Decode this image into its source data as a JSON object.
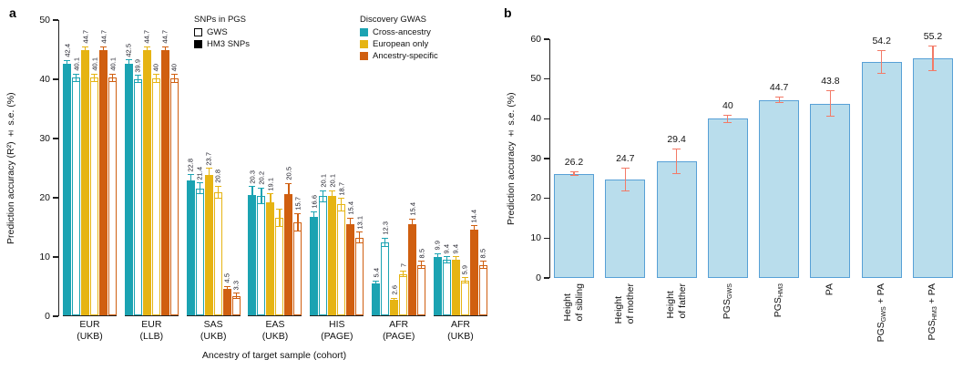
{
  "figure": {
    "panel_a_label": "a",
    "panel_b_label": "b"
  },
  "chart_data": [
    {
      "panel": "a",
      "type": "bar",
      "ylabel": "Prediction accuracy (R²) ± s.e. (%)",
      "xlabel": "Ancestry of target sample (cohort)",
      "ylim": [
        0,
        50
      ],
      "yticks": [
        0,
        10,
        20,
        30,
        40,
        50
      ],
      "grid": false,
      "legend_snps": {
        "title": "SNPs in PGS",
        "items": [
          {
            "label": "GWS",
            "style": "open"
          },
          {
            "label": "HM3 SNPs",
            "style": "solid"
          }
        ]
      },
      "legend_gwas": {
        "title": "Discovery GWAS",
        "items": [
          {
            "label": "Cross-ancestry",
            "key": "cross"
          },
          {
            "label": "European only",
            "key": "euro"
          },
          {
            "label": "Ancestry-specific",
            "key": "spec"
          }
        ]
      },
      "colors": {
        "cross": "#1ba3b2",
        "euro": "#e6b413",
        "spec": "#d05f10"
      },
      "groups": [
        {
          "label": [
            "EUR",
            "(UKB)"
          ],
          "bars": [
            {
              "series": "cross",
              "snp": "HM3",
              "style": "solid",
              "value": 42.4,
              "se": 0.7,
              "label": "42.4"
            },
            {
              "series": "cross",
              "snp": "GWS",
              "style": "open",
              "value": 40.1,
              "se": 0.7,
              "label": "40.1"
            },
            {
              "series": "euro",
              "snp": "HM3",
              "style": "solid",
              "value": 44.7,
              "se": 0.7,
              "label": "44.7"
            },
            {
              "series": "euro",
              "snp": "GWS",
              "style": "open",
              "value": 40.1,
              "se": 0.7,
              "label": "40.1"
            },
            {
              "series": "spec",
              "snp": "HM3",
              "style": "solid",
              "value": 44.7,
              "se": 0.7,
              "label": "44.7"
            },
            {
              "series": "spec",
              "snp": "GWS",
              "style": "open",
              "value": 40.1,
              "se": 0.7,
              "label": "40.1"
            }
          ]
        },
        {
          "label": [
            "EUR",
            "(LLB)"
          ],
          "bars": [
            {
              "series": "cross",
              "snp": "HM3",
              "style": "solid",
              "value": 42.5,
              "se": 0.7,
              "label": "42.5"
            },
            {
              "series": "cross",
              "snp": "GWS",
              "style": "open",
              "value": 39.9,
              "se": 0.7,
              "label": "39.9"
            },
            {
              "series": "euro",
              "snp": "HM3",
              "style": "solid",
              "value": 44.7,
              "se": 0.7,
              "label": "44.7"
            },
            {
              "series": "euro",
              "snp": "GWS",
              "style": "open",
              "value": 40,
              "se": 0.7,
              "label": "40"
            },
            {
              "series": "spec",
              "snp": "HM3",
              "style": "solid",
              "value": 44.7,
              "se": 0.7,
              "label": "44.7"
            },
            {
              "series": "spec",
              "snp": "GWS",
              "style": "open",
              "value": 40,
              "se": 0.7,
              "label": "40"
            }
          ]
        },
        {
          "label": [
            "SAS",
            "(UKB)"
          ],
          "bars": [
            {
              "series": "cross",
              "snp": "HM3",
              "style": "solid",
              "value": 22.8,
              "se": 1.0,
              "label": "22.8"
            },
            {
              "series": "cross",
              "snp": "GWS",
              "style": "open",
              "value": 21.4,
              "se": 1.0,
              "label": "21.4"
            },
            {
              "series": "euro",
              "snp": "HM3",
              "style": "solid",
              "value": 23.7,
              "se": 1.2,
              "label": "23.7"
            },
            {
              "series": "euro",
              "snp": "GWS",
              "style": "open",
              "value": 20.8,
              "se": 1.1,
              "label": "20.8"
            },
            {
              "series": "spec",
              "snp": "HM3",
              "style": "solid",
              "value": 4.5,
              "se": 0.5,
              "label": "4.5"
            },
            {
              "series": "spec",
              "snp": "GWS",
              "style": "open",
              "value": 3.3,
              "se": 0.5,
              "label": "3.3"
            }
          ]
        },
        {
          "label": [
            "EAS",
            "(UKB)"
          ],
          "bars": [
            {
              "series": "cross",
              "snp": "HM3",
              "style": "solid",
              "value": 20.3,
              "se": 1.5,
              "label": "20.3"
            },
            {
              "series": "cross",
              "snp": "GWS",
              "style": "open",
              "value": 20.2,
              "se": 1.4,
              "label": "20.2"
            },
            {
              "series": "euro",
              "snp": "HM3",
              "style": "solid",
              "value": 19.1,
              "se": 1.5,
              "label": "19.1"
            },
            {
              "series": "euro",
              "snp": "GWS",
              "style": "open",
              "value": 16.5,
              "se": 1.5,
              "label": ""
            },
            {
              "series": "spec",
              "snp": "HM3",
              "style": "solid",
              "value": 20.5,
              "se": 1.8,
              "label": "20.5"
            },
            {
              "series": "spec",
              "snp": "GWS",
              "style": "open",
              "value": 15.7,
              "se": 1.6,
              "label": "15.7"
            }
          ]
        },
        {
          "label": [
            "HIS",
            "(PAGE)"
          ],
          "bars": [
            {
              "series": "cross",
              "snp": "HM3",
              "style": "solid",
              "value": 16.6,
              "se": 1.0,
              "label": "16.6"
            },
            {
              "series": "cross",
              "snp": "GWS",
              "style": "open",
              "value": 20.1,
              "se": 1.0,
              "label": "20.1"
            },
            {
              "series": "euro",
              "snp": "HM3",
              "style": "solid",
              "value": 20.1,
              "se": 1.0,
              "label": "20.1"
            },
            {
              "series": "euro",
              "snp": "GWS",
              "style": "open",
              "value": 18.7,
              "se": 1.1,
              "label": "18.7"
            },
            {
              "series": "spec",
              "snp": "HM3",
              "style": "solid",
              "value": 15.4,
              "se": 1.1,
              "label": "15.4"
            },
            {
              "series": "spec",
              "snp": "GWS",
              "style": "open",
              "value": 13.1,
              "se": 1.0,
              "label": "13.1"
            }
          ]
        },
        {
          "label": [
            "AFR",
            "(PAGE)"
          ],
          "bars": [
            {
              "series": "cross",
              "snp": "HM3",
              "style": "solid",
              "value": 5.4,
              "se": 0.5,
              "label": "5.4"
            },
            {
              "series": "cross",
              "snp": "GWS",
              "style": "open",
              "value": 12.3,
              "se": 0.8,
              "label": "12.3"
            },
            {
              "series": "euro",
              "snp": "HM3",
              "style": "solid",
              "value": 2.6,
              "se": 0.4,
              "label": "2.6"
            },
            {
              "series": "euro",
              "snp": "GWS",
              "style": "open",
              "value": 7,
              "se": 0.6,
              "label": "7"
            },
            {
              "series": "spec",
              "snp": "HM3",
              "style": "solid",
              "value": 15.4,
              "se": 0.9,
              "label": "15.4"
            },
            {
              "series": "spec",
              "snp": "GWS",
              "style": "open",
              "value": 8.5,
              "se": 0.7,
              "label": "8.5"
            }
          ]
        },
        {
          "label": [
            "AFR",
            "(UKB)"
          ],
          "bars": [
            {
              "series": "cross",
              "snp": "HM3",
              "style": "solid",
              "value": 9.9,
              "se": 0.6,
              "label": "9.9"
            },
            {
              "series": "cross",
              "snp": "GWS",
              "style": "open",
              "value": 9.4,
              "se": 0.6,
              "label": "9.4"
            },
            {
              "series": "euro",
              "snp": "HM3",
              "style": "solid",
              "value": 9.4,
              "se": 0.6,
              "label": "9.4"
            },
            {
              "series": "euro",
              "snp": "GWS",
              "style": "open",
              "value": 5.9,
              "se": 0.5,
              "label": "5.9"
            },
            {
              "series": "spec",
              "snp": "HM3",
              "style": "solid",
              "value": 14.4,
              "se": 0.8,
              "label": "14.4"
            },
            {
              "series": "spec",
              "snp": "GWS",
              "style": "open",
              "value": 8.5,
              "se": 0.7,
              "label": "8.5"
            }
          ]
        }
      ]
    },
    {
      "panel": "b",
      "type": "bar",
      "ylabel": "Prediction accuracy ± s.e. (%)",
      "xlabel": "",
      "ylim": [
        0,
        60
      ],
      "yticks": [
        0,
        10,
        20,
        30,
        40,
        50,
        60
      ],
      "grid": false,
      "bar_fill": "#b9ddec",
      "bar_border": "#57a0d6",
      "error_color": "#f37a67",
      "bars": [
        {
          "value": 26.2,
          "se": 0.6,
          "value_label": "26.2",
          "label_lines": [
            [
              {
                "t": "Height"
              }
            ],
            [
              {
                "t": "of sibling"
              }
            ]
          ]
        },
        {
          "value": 24.7,
          "se": 3.0,
          "value_label": "24.7",
          "label_lines": [
            [
              {
                "t": "Height"
              }
            ],
            [
              {
                "t": "of mother"
              }
            ]
          ]
        },
        {
          "value": 29.4,
          "se": 3.2,
          "value_label": "29.4",
          "label_lines": [
            [
              {
                "t": "Height"
              }
            ],
            [
              {
                "t": "of father"
              }
            ]
          ]
        },
        {
          "value": 40,
          "se": 1.1,
          "value_label": "40",
          "label_lines": [
            [
              {
                "t": "PGS"
              },
              {
                "t": "GWS",
                "sub": true
              }
            ]
          ]
        },
        {
          "value": 44.7,
          "se": 0.8,
          "value_label": "44.7",
          "label_lines": [
            [
              {
                "t": "PGS"
              },
              {
                "t": "HM3",
                "sub": true
              }
            ]
          ]
        },
        {
          "value": 43.8,
          "se": 3.3,
          "value_label": "43.8",
          "label_lines": [
            [
              {
                "t": "PA"
              }
            ]
          ]
        },
        {
          "value": 54.2,
          "se": 3.0,
          "value_label": "54.2",
          "label_lines": [
            [
              {
                "t": "PGS"
              },
              {
                "t": "GWS",
                "sub": true
              },
              {
                "t": " + PA"
              }
            ]
          ]
        },
        {
          "value": 55.2,
          "se": 3.2,
          "value_label": "55.2",
          "label_lines": [
            [
              {
                "t": "PGS"
              },
              {
                "t": "HM3",
                "sub": true
              },
              {
                "t": " + PA"
              }
            ]
          ]
        }
      ]
    }
  ]
}
